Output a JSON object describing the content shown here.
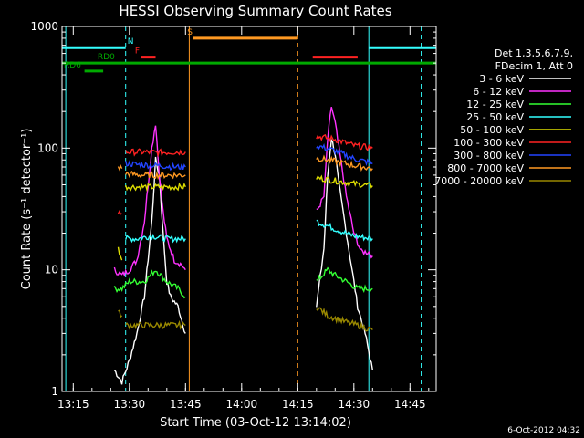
{
  "chart_data": {
    "type": "line",
    "title": "HESSI Observing Summary Count Rates",
    "xlabel": "Start Time (03-Oct-12 13:14:02)",
    "ylabel": "Count Rate (s⁻¹ detector⁻¹)",
    "yscale": "log",
    "ylim": [
      1,
      1000
    ],
    "xlim": [
      "13:12",
      "14:52"
    ],
    "x_ticks": [
      "13:15",
      "13:30",
      "13:45",
      "14:00",
      "14:15",
      "14:30",
      "14:45"
    ],
    "y_ticks": [
      "1",
      "10",
      "100",
      "1000"
    ],
    "footer_date": "6-Oct-2012 04:32",
    "legend": {
      "header": [
        "Det 1,3,5,6,7,9,",
        "FDecim 1, Att 0"
      ],
      "entries": [
        {
          "label": "3 - 6 keV",
          "color": "#ffffff"
        },
        {
          "label": "6 - 12 keV",
          "color": "#ff33ff"
        },
        {
          "label": "12 - 25 keV",
          "color": "#33ff33"
        },
        {
          "label": "25 - 50 keV",
          "color": "#33ffff"
        },
        {
          "label": "50 - 100 keV",
          "color": "#dddd00"
        },
        {
          "label": "100 - 300 keV",
          "color": "#ff2222"
        },
        {
          "label": "300 - 800 keV",
          "color": "#2244ff"
        },
        {
          "label": "800 - 7000 keV",
          "color": "#ff9922"
        },
        {
          "label": "7000 - 20000 keV",
          "color": "#998800"
        }
      ]
    },
    "series": [
      {
        "name": "3 - 6 keV",
        "color": "#ffffff",
        "segments": [
          [
            [
              "13:26",
              1.5
            ],
            [
              "13:28",
              1.2
            ],
            [
              "13:30",
              1.8
            ],
            [
              "13:32",
              3
            ],
            [
              "13:34",
              6
            ],
            [
              "13:36",
              25
            ],
            [
              "13:37",
              80
            ],
            [
              "13:38",
              60
            ],
            [
              "13:39",
              20
            ],
            [
              "13:40",
              8
            ],
            [
              "13:41",
              6
            ],
            [
              "13:43",
              5
            ],
            [
              "13:45",
              3
            ]
          ],
          [
            [
              "14:20",
              5
            ],
            [
              "14:22",
              15
            ],
            [
              "14:23",
              60
            ],
            [
              "14:24",
              120
            ],
            [
              "14:25",
              90
            ],
            [
              "14:26",
              50
            ],
            [
              "14:28",
              20
            ],
            [
              "14:30",
              8
            ],
            [
              "14:31",
              5
            ],
            [
              "14:33",
              3
            ],
            [
              "14:35",
              1.5
            ]
          ]
        ]
      },
      {
        "name": "6 - 12 keV",
        "color": "#ff33ff",
        "segments": [
          [
            [
              "13:26",
              10
            ],
            [
              "13:28",
              9
            ],
            [
              "13:30",
              10
            ],
            [
              "13:32",
              12
            ],
            [
              "13:34",
              25
            ],
            [
              "13:36",
              100
            ],
            [
              "13:37",
              160
            ],
            [
              "13:38",
              60
            ],
            [
              "13:39",
              30
            ],
            [
              "13:40",
              18
            ],
            [
              "13:42",
              12
            ],
            [
              "13:44",
              11
            ],
            [
              "13:45",
              10
            ]
          ],
          [
            [
              "14:20",
              30
            ],
            [
              "14:22",
              40
            ],
            [
              "14:23",
              120
            ],
            [
              "14:24",
              220
            ],
            [
              "14:25",
              160
            ],
            [
              "14:26",
              100
            ],
            [
              "14:28",
              40
            ],
            [
              "14:30",
              20
            ],
            [
              "14:32",
              14
            ],
            [
              "14:34",
              14
            ],
            [
              "14:35",
              13
            ]
          ]
        ]
      },
      {
        "name": "12 - 25 keV",
        "color": "#33ff33",
        "segments": [
          [
            [
              "13:26",
              7
            ],
            [
              "13:28",
              7
            ],
            [
              "13:30",
              8
            ],
            [
              "13:34",
              8
            ],
            [
              "13:37",
              10
            ],
            [
              "13:40",
              8
            ],
            [
              "13:43",
              7
            ],
            [
              "13:45",
              6
            ]
          ],
          [
            [
              "14:20",
              8
            ],
            [
              "14:23",
              10
            ],
            [
              "14:25",
              9
            ],
            [
              "14:28",
              8
            ],
            [
              "14:31",
              7
            ],
            [
              "14:35",
              7
            ]
          ]
        ]
      },
      {
        "name": "25 - 50 keV",
        "color": "#33ffff",
        "segments": [
          [
            [
              "13:29",
              18
            ],
            [
              "13:32",
              18
            ],
            [
              "13:36",
              19
            ],
            [
              "13:40",
              18
            ],
            [
              "13:45",
              18
            ]
          ],
          [
            [
              "14:20",
              25
            ],
            [
              "14:23",
              23
            ],
            [
              "14:26",
              21
            ],
            [
              "14:30",
              19
            ],
            [
              "14:35",
              18
            ]
          ]
        ]
      },
      {
        "name": "50 - 100 keV",
        "color": "#dddd00",
        "segments": [
          [
            [
              "13:27",
              15
            ],
            [
              "13:28",
              12
            ]
          ],
          [
            [
              "13:29",
              48
            ],
            [
              "13:33",
              48
            ],
            [
              "13:38",
              48
            ],
            [
              "13:42",
              48
            ],
            [
              "13:45",
              48
            ]
          ],
          [
            [
              "14:20",
              57
            ],
            [
              "14:25",
              54
            ],
            [
              "14:30",
              51
            ],
            [
              "14:35",
              49
            ]
          ]
        ]
      },
      {
        "name": "100 - 300 keV",
        "color": "#ff2222",
        "segments": [
          [
            [
              "13:27",
              30
            ],
            [
              "13:28",
              29
            ]
          ],
          [
            [
              "13:29",
              93
            ],
            [
              "13:33",
              93
            ],
            [
              "13:38",
              92
            ],
            [
              "13:42",
              93
            ],
            [
              "13:45",
              93
            ]
          ],
          [
            [
              "14:20",
              125
            ],
            [
              "14:25",
              118
            ],
            [
              "14:30",
              105
            ],
            [
              "14:35",
              100
            ]
          ]
        ]
      },
      {
        "name": "300 - 800 keV",
        "color": "#2244ff",
        "segments": [
          [
            [
              "13:29",
              75
            ],
            [
              "13:33",
              73
            ],
            [
              "13:38",
              72
            ],
            [
              "13:42",
              70
            ],
            [
              "13:45",
              70
            ]
          ],
          [
            [
              "14:20",
              105
            ],
            [
              "14:25",
              95
            ],
            [
              "14:30",
              82
            ],
            [
              "14:35",
              75
            ]
          ]
        ]
      },
      {
        "name": "800 - 7000 keV",
        "color": "#ff9922",
        "segments": [
          [
            [
              "13:27",
              70
            ],
            [
              "13:28",
              68
            ]
          ],
          [
            [
              "13:29",
              62
            ],
            [
              "13:33",
              60
            ],
            [
              "13:38",
              60
            ],
            [
              "13:42",
              60
            ],
            [
              "13:45",
              60
            ]
          ],
          [
            [
              "14:20",
              83
            ],
            [
              "14:25",
              78
            ],
            [
              "14:30",
              72
            ],
            [
              "14:35",
              68
            ]
          ]
        ]
      },
      {
        "name": "7000 - 20000 keV",
        "color": "#998800",
        "segments": [
          [
            [
              "13:27",
              4.5
            ],
            [
              "13:28",
              4.2
            ]
          ],
          [
            [
              "13:29",
              3.5
            ],
            [
              "13:33",
              3.5
            ],
            [
              "13:38",
              3.5
            ],
            [
              "13:42",
              3.5
            ],
            [
              "13:45",
              3.5
            ]
          ],
          [
            [
              "14:20",
              5
            ],
            [
              "14:23",
              4.2
            ],
            [
              "14:27",
              3.8
            ],
            [
              "14:31",
              3.5
            ],
            [
              "14:35",
              3.2
            ]
          ]
        ]
      }
    ],
    "vertical_lines": [
      {
        "t": "13:13",
        "color": "#33ffff",
        "style": "solid"
      },
      {
        "t": "13:29",
        "color": "#33ffff",
        "style": "dashed"
      },
      {
        "t": "13:46",
        "color": "#ff9922",
        "style": "solid"
      },
      {
        "t": "13:47",
        "color": "#ff9922",
        "style": "solid"
      },
      {
        "t": "14:15",
        "color": "#ff9922",
        "style": "dashed"
      },
      {
        "t": "14:34",
        "color": "#33ffff",
        "style": "solid"
      },
      {
        "t": "14:48",
        "color": "#33ffff",
        "style": "dashed"
      }
    ],
    "state_bars": [
      {
        "label": "N",
        "color": "#33ffff",
        "y": 670,
        "segments": [
          [
            "13:12",
            "13:29"
          ],
          [
            "14:34",
            "14:52"
          ]
        ],
        "label_at": "13:29"
      },
      {
        "label": "S",
        "color": "#ff9922",
        "y": 800,
        "segments": [
          [
            "13:47",
            "14:15"
          ]
        ],
        "label_at": "13:45"
      },
      {
        "label": "F",
        "color": "#ff2222",
        "y": 560,
        "segments": [
          [
            "13:33",
            "13:37"
          ],
          [
            "14:19",
            "14:31"
          ]
        ],
        "label_at": "13:31"
      },
      {
        "label": "RD0",
        "color": "#00aa00",
        "y": 500,
        "segments": [
          [
            "13:12",
            "14:52"
          ]
        ],
        "label_at": "13:21"
      },
      {
        "label": "RD6",
        "color": "#00aa00",
        "y": 430,
        "segments": [
          [
            "13:18",
            "13:23"
          ]
        ],
        "label_at": "13:12"
      }
    ]
  }
}
